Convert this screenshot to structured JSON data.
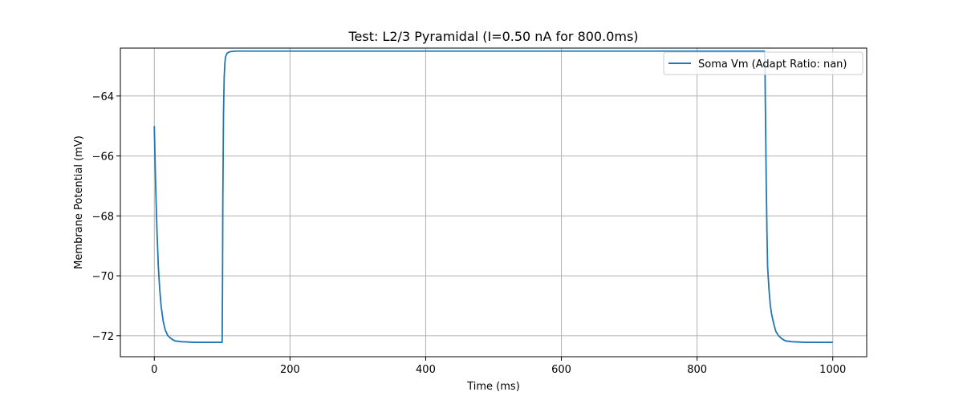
{
  "chart_data": {
    "type": "line",
    "title": "Test: L2/3 Pyramidal (I=0.50 nA for 800.0ms)",
    "xlabel": "Time (ms)",
    "ylabel": "Membrane Potential (mV)",
    "xlim": [
      -50,
      1050
    ],
    "ylim": [
      -72.7,
      -62.4
    ],
    "xticks": [
      0,
      200,
      400,
      600,
      800,
      1000
    ],
    "xtick_labels": [
      "0",
      "200",
      "400",
      "600",
      "800",
      "1000"
    ],
    "yticks": [
      -72,
      -70,
      -68,
      -66,
      -64
    ],
    "ytick_labels": [
      "−72",
      "−70",
      "−68",
      "−66",
      "−64"
    ],
    "grid": true,
    "legend": {
      "position": "top-right"
    },
    "series": [
      {
        "name": "Soma Vm (Adapt Ratio: nan)",
        "color": "#1f77b4",
        "x": [
          0,
          2,
          4,
          6,
          8,
          10,
          13,
          16,
          20,
          25,
          30,
          40,
          50,
          60,
          80,
          100,
          100.5,
          101,
          102,
          103,
          104,
          105,
          107,
          110,
          115,
          120,
          150,
          200,
          400,
          600,
          800,
          899,
          900,
          900.5,
          901,
          902,
          903,
          904,
          906,
          908,
          910,
          913,
          916,
          920,
          925,
          930,
          940,
          950,
          960,
          980,
          1000
        ],
        "y": [
          -65.0,
          -67.0,
          -68.55,
          -69.72,
          -70.45,
          -71.0,
          -71.5,
          -71.8,
          -72.0,
          -72.1,
          -72.17,
          -72.2,
          -72.21,
          -72.22,
          -72.22,
          -72.22,
          -70.5,
          -67.5,
          -64.6,
          -63.4,
          -62.9,
          -62.7,
          -62.58,
          -62.53,
          -62.51,
          -62.5,
          -62.5,
          -62.5,
          -62.5,
          -62.5,
          -62.5,
          -62.5,
          -62.7,
          -64.0,
          -65.0,
          -67.0,
          -68.55,
          -69.72,
          -70.45,
          -71.0,
          -71.3,
          -71.6,
          -71.85,
          -72.0,
          -72.1,
          -72.17,
          -72.2,
          -72.21,
          -72.22,
          -72.22,
          -72.22
        ]
      }
    ]
  }
}
